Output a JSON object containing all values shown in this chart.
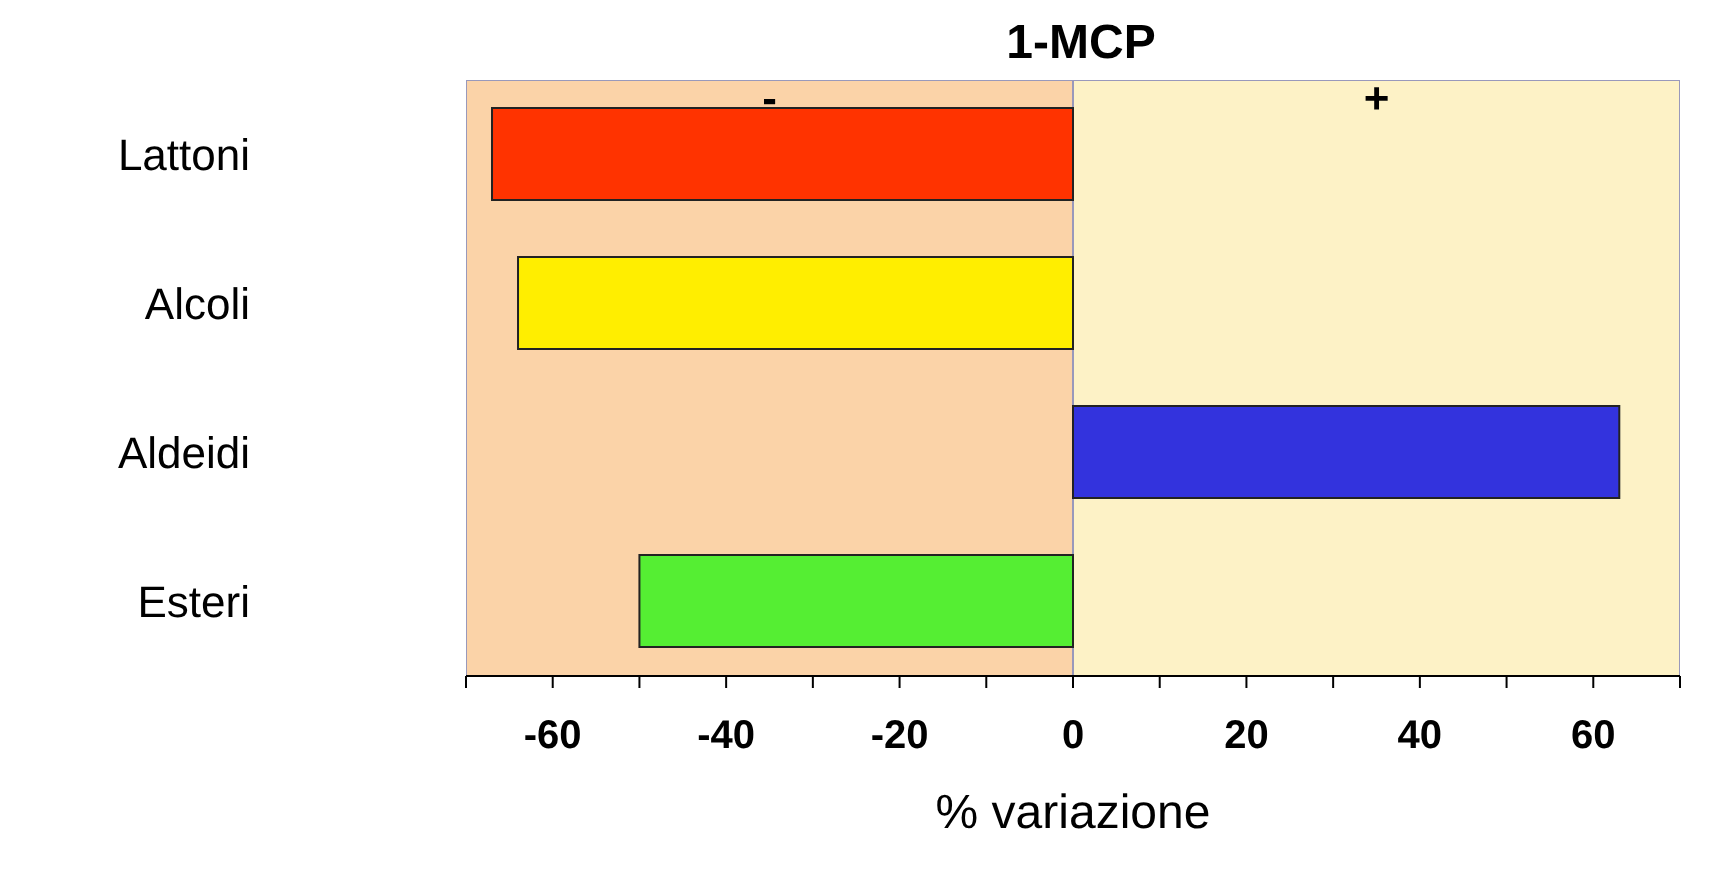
{
  "chart_data": {
    "type": "bar",
    "orientation": "horizontal",
    "title": "1-MCP",
    "xlabel": "% variazione",
    "categories": [
      "Lattoni",
      "Alcoli",
      "Aldeidi",
      "Esteri"
    ],
    "values": [
      -67,
      -64,
      63,
      -50
    ],
    "colors": [
      "#ff3300",
      "#ffee00",
      "#3333dd",
      "#55ee33"
    ],
    "xlim": [
      -70,
      70
    ],
    "xticks": [
      {
        "value": -70,
        "label": null
      },
      -60,
      {
        "value": -50,
        "label": null
      },
      -40,
      {
        "value": -30,
        "label": null
      },
      -20,
      {
        "value": -10,
        "label": null
      },
      0,
      {
        "value": 10,
        "label": null
      },
      20,
      {
        "value": 30,
        "label": null
      },
      40,
      {
        "value": 50,
        "label": null
      },
      60,
      {
        "value": 70,
        "label": null
      }
    ],
    "bands": [
      {
        "axis": "x",
        "from": -70,
        "to": 0,
        "label": "-",
        "color": "#fbd3a8"
      },
      {
        "axis": "x",
        "from": 0,
        "to": 70,
        "label": "+",
        "color": "#fdf2c6"
      }
    ],
    "grid": false,
    "legend": false
  }
}
